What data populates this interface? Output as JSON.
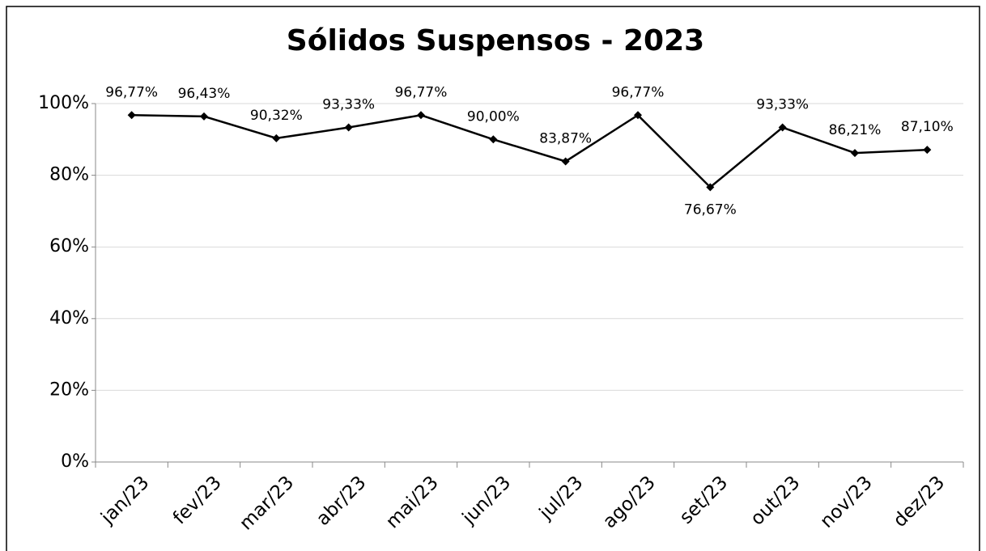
{
  "chart_data": {
    "type": "line",
    "title": "Sólidos Suspensos - 2023",
    "categories": [
      "jan/23",
      "fev/23",
      "mar/23",
      "abr/23",
      "mai/23",
      "jun/23",
      "jul/23",
      "ago/23",
      "set/23",
      "out/23",
      "nov/23",
      "dez/23"
    ],
    "values": [
      96.77,
      96.43,
      90.32,
      93.33,
      96.77,
      90.0,
      83.87,
      96.77,
      76.67,
      93.33,
      86.21,
      87.1
    ],
    "value_labels": [
      "96,77%",
      "96,43%",
      "90,32%",
      "93,33%",
      "96,77%",
      "90,00%",
      "83,87%",
      "96,77%",
      "76,67%",
      "93,33%",
      "86,21%",
      "87,10%"
    ],
    "color": "#000000",
    "ylim": [
      0,
      100
    ],
    "yticks": [
      {
        "value": 0,
        "label": "0%"
      },
      {
        "value": 20,
        "label": "20%"
      },
      {
        "value": 40,
        "label": "40%"
      },
      {
        "value": 60,
        "label": "60%"
      },
      {
        "value": 80,
        "label": "80%"
      },
      {
        "value": 100,
        "label": "100%"
      }
    ],
    "grid": true
  }
}
